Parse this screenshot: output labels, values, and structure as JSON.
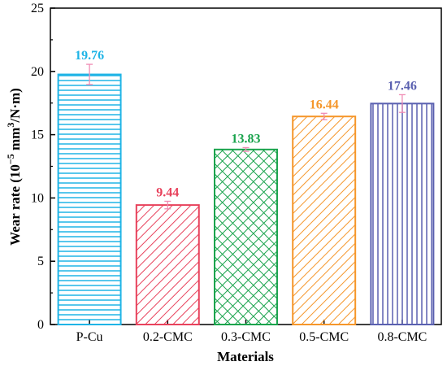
{
  "chart_data": {
    "type": "bar",
    "title": "",
    "xlabel": "Materials",
    "ylabel_prefix": "Wear rate (10",
    "ylabel_exp1": "−5",
    "ylabel_mid": " mm",
    "ylabel_exp2": "3",
    "ylabel_suffix": "/N·m)",
    "ylim": [
      0,
      25
    ],
    "yticks": [
      "0",
      "5",
      "10",
      "15",
      "20",
      "25"
    ],
    "grid": false,
    "categories": [
      "P-Cu",
      "0.2-CMC",
      "0.3-CMC",
      "0.5-CMC",
      "0.8-CMC"
    ],
    "values": [
      19.76,
      9.44,
      13.83,
      16.44,
      17.46
    ],
    "value_labels": [
      "19.76",
      "9.44",
      "13.83",
      "16.44",
      "17.46"
    ],
    "errors": [
      0.8,
      0.3,
      0.15,
      0.25,
      0.7
    ],
    "colors": [
      "#1fb4e6",
      "#e8425c",
      "#19a34c",
      "#f5962a",
      "#5a60b0"
    ],
    "patterns": [
      "horizontal",
      "diagonal",
      "crosshatch",
      "diagonal",
      "vertical"
    ],
    "error_bar_color": "#f08cb4"
  }
}
